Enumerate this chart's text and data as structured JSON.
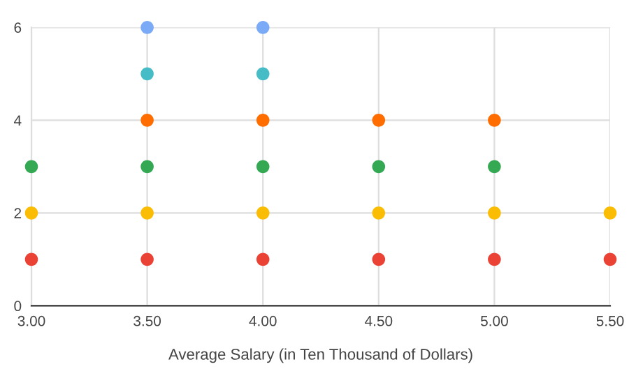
{
  "chart_data": {
    "type": "scatter",
    "xlabel": "Average Salary (in Ten Thousand of Dollars)",
    "series": [
      {
        "color": "#ea4335",
        "x": [
          3.0,
          3.5,
          4.0,
          4.5,
          5.0,
          5.5
        ],
        "values": [
          1,
          1,
          1,
          1,
          1,
          1
        ]
      },
      {
        "color": "#fbbc04",
        "x": [
          3.0,
          3.5,
          4.0,
          4.5,
          5.0,
          5.5
        ],
        "values": [
          2,
          2,
          2,
          2,
          2,
          2
        ]
      },
      {
        "color": "#34a853",
        "x": [
          3.0,
          3.5,
          4.0,
          4.5,
          5.0
        ],
        "values": [
          3,
          3,
          3,
          3,
          3
        ]
      },
      {
        "color": "#ff6d01",
        "x": [
          3.5,
          4.0,
          4.5,
          5.0
        ],
        "values": [
          4,
          4,
          4,
          4
        ]
      },
      {
        "color": "#46bdc6",
        "x": [
          3.5,
          4.0
        ],
        "values": [
          5,
          5
        ]
      },
      {
        "color": "#7baaf7",
        "x": [
          3.5,
          4.0
        ],
        "values": [
          6,
          6
        ]
      }
    ],
    "xlim": [
      3.0,
      5.5
    ],
    "ylim": [
      0,
      6
    ],
    "xticks": [
      {
        "value": 3.0,
        "label": "3.00"
      },
      {
        "value": 3.5,
        "label": "3.50"
      },
      {
        "value": 4.0,
        "label": "4.00"
      },
      {
        "value": 4.5,
        "label": "4.50"
      },
      {
        "value": 5.0,
        "label": "5.00"
      },
      {
        "value": 5.5,
        "label": "5.50"
      }
    ],
    "yticks": [
      0,
      2,
      4,
      6
    ],
    "grid": true,
    "marker": "circle"
  }
}
